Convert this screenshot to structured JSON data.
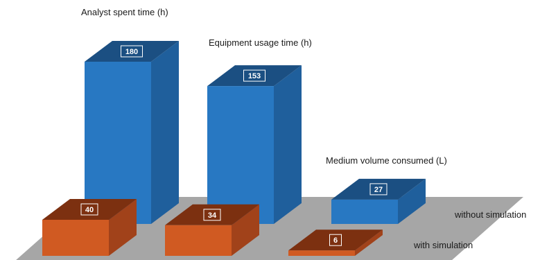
{
  "chart_data": {
    "type": "bar",
    "categories": [
      "Analyst spent time (h)",
      "Equipment usage time (h)",
      "Medium volume consumed (L)"
    ],
    "series": [
      {
        "name": "without simulation",
        "values": [
          180,
          153,
          27
        ]
      },
      {
        "name": "with simulation",
        "values": [
          40,
          34,
          6
        ]
      }
    ],
    "grid": false,
    "legend": "series labels at right edge of floor",
    "colors": {
      "without_front": "#2878c2",
      "without_top": "#1b4f82",
      "without_side": "#1f5f9c",
      "with_front": "#d05a22",
      "with_top": "#7c3010",
      "with_side": "#a1421a",
      "floor": "#a6a6a6"
    }
  }
}
